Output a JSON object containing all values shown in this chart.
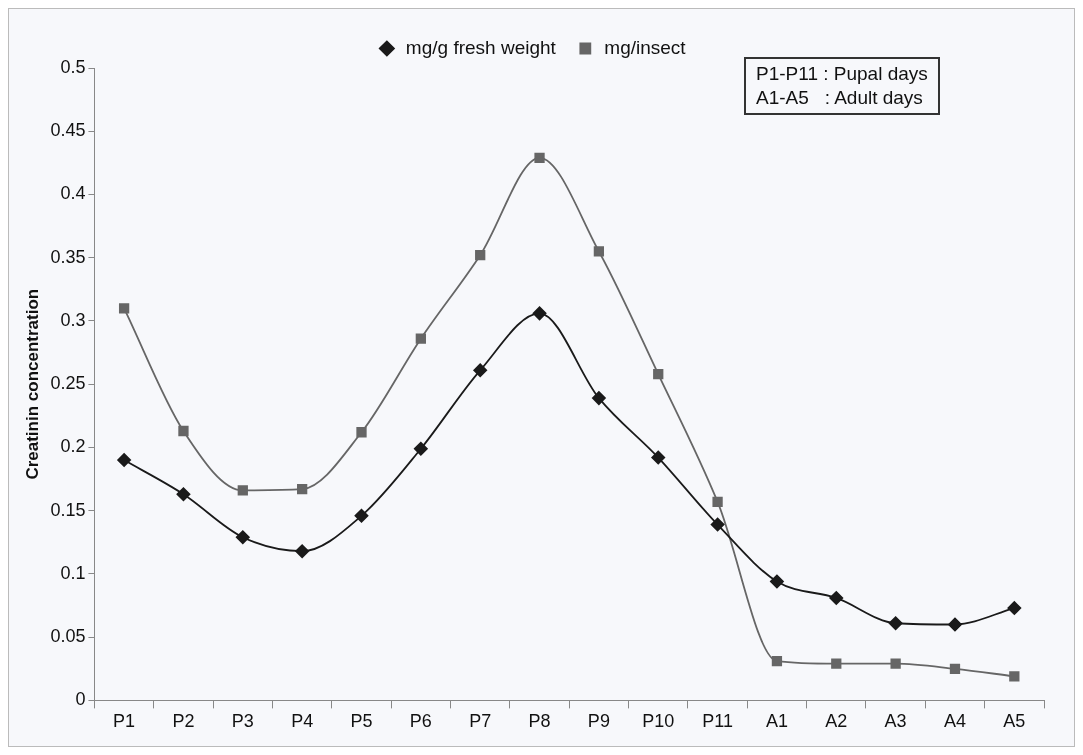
{
  "chart_data": {
    "type": "line",
    "ylabel": "Creatinin concentration",
    "categories": [
      "P1",
      "P2",
      "P3",
      "P4",
      "P5",
      "P6",
      "P7",
      "P8",
      "P9",
      "P10",
      "P11",
      "A1",
      "A2",
      "A3",
      "A4",
      "A5"
    ],
    "series": [
      {
        "name": "mg/g fresh weight",
        "color": "#1a1a1a",
        "marker": "diamond",
        "values": [
          0.19,
          0.163,
          0.129,
          0.118,
          0.146,
          0.199,
          0.261,
          0.306,
          0.239,
          0.192,
          0.139,
          0.094,
          0.081,
          0.061,
          0.06,
          0.073
        ]
      },
      {
        "name": "mg/insect",
        "color": "#666666",
        "marker": "square",
        "values": [
          0.31,
          0.213,
          0.166,
          0.167,
          0.212,
          0.286,
          0.352,
          0.429,
          0.355,
          0.258,
          0.157,
          0.031,
          0.029,
          0.029,
          0.025,
          0.019
        ]
      }
    ],
    "ylim": [
      0,
      0.5
    ],
    "yticks": [
      0,
      0.05,
      0.1,
      0.15,
      0.2,
      0.25,
      0.3,
      0.35,
      0.4,
      0.45,
      0.5
    ],
    "grid": false,
    "legend": "top",
    "annotations": [
      "P1-P11 : Pupal days",
      "A1-A5   : Adult days"
    ]
  }
}
